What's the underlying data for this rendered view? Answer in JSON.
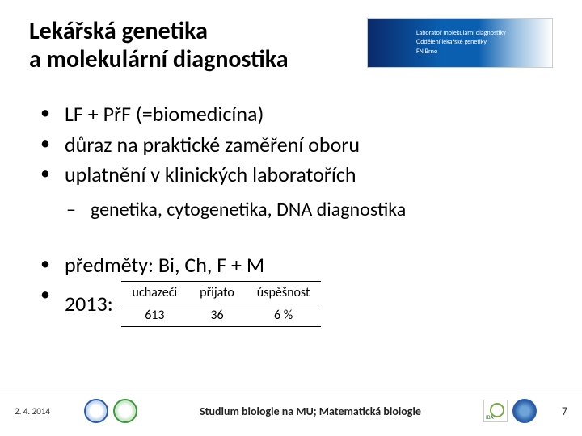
{
  "title_line1": "Lekářská genetika",
  "title_line2": "a molekulární diagnostika",
  "header_logo": {
    "line1": "Laboratoř molekulární diagnostiky",
    "line2": "Oddělení lékařské genetiky",
    "line3": "FN Brno"
  },
  "bullets": {
    "b1": "LF + PřF (=biomedicína)",
    "b2": "důraz na praktické zaměření oboru",
    "b3": "uplatnění v klinických laboratořích",
    "sub1": "genetika, cytogenetika, DNA diagnostika",
    "b4": "předměty: Bi, Ch, F + M",
    "b5_prefix": "2013: "
  },
  "stats_table": {
    "columns": [
      "uchazeči",
      "přijato",
      "úspěšnost"
    ],
    "row": [
      "613",
      "36",
      "6 %"
    ],
    "header_fontsize": 16,
    "cell_fontsize": 16,
    "border_color": "#000000"
  },
  "footer": {
    "date": "2. 4. 2014",
    "caption": "Studium biologie na MU; Matematická biologie",
    "page_number": "7"
  },
  "colors": {
    "text": "#000000",
    "background": "#ffffff",
    "footer_rule": "#d0d0d0",
    "logo_blue": "#2a5da8",
    "logo_green": "#3a9a3a"
  },
  "typography": {
    "title_fontsize": 30,
    "bullet_fontsize": 26,
    "subbullet_fontsize": 24,
    "footer_caption_fontsize": 14,
    "footer_date_fontsize": 11
  }
}
